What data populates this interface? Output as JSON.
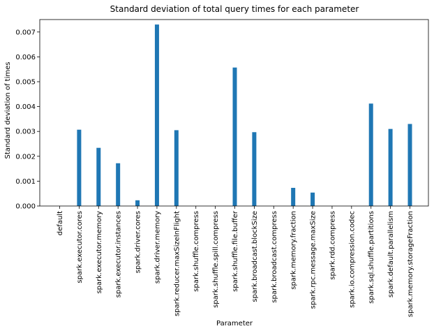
{
  "chart_data": {
    "type": "bar",
    "title": "Standard deviation of total query times for each parameter",
    "xlabel": "Parameter",
    "ylabel": "Standard deviation of times",
    "ylim": [
      0,
      0.0075
    ],
    "yticks": [
      "0.000",
      "0.001",
      "0.002",
      "0.003",
      "0.004",
      "0.005",
      "0.006",
      "0.007"
    ],
    "grid": false,
    "bar_color": "#1f77b4",
    "categories": [
      "default",
      "spark.executor.cores",
      "spark.executor.memory",
      "spark.executor.instances",
      "spark.driver.cores",
      "spark.driver.memory",
      "spark.reducer.maxSizeInFlight",
      "spark.shuffle.compress",
      "spark.shuffle.spill.compress",
      "spark.shuffle.file.buffer",
      "spark.broadcast.blockSize",
      "spark.broadcast.compress",
      "spark.memory.fraction",
      "spark.rpc.message.maxSize",
      "spark.rdd.compress",
      "spark.io.compression.codec",
      "spark.sql.shuffle.partitions",
      "spark.default.parallelism",
      "spark.memory.storageFraction"
    ],
    "values": [
      0.0,
      0.00307,
      0.00234,
      0.00172,
      0.00023,
      0.0073,
      0.00305,
      0.0,
      0.0,
      0.00557,
      0.00297,
      0.0,
      0.00073,
      0.00054,
      0.0,
      0.0,
      0.00412,
      0.0031,
      0.0033
    ]
  }
}
